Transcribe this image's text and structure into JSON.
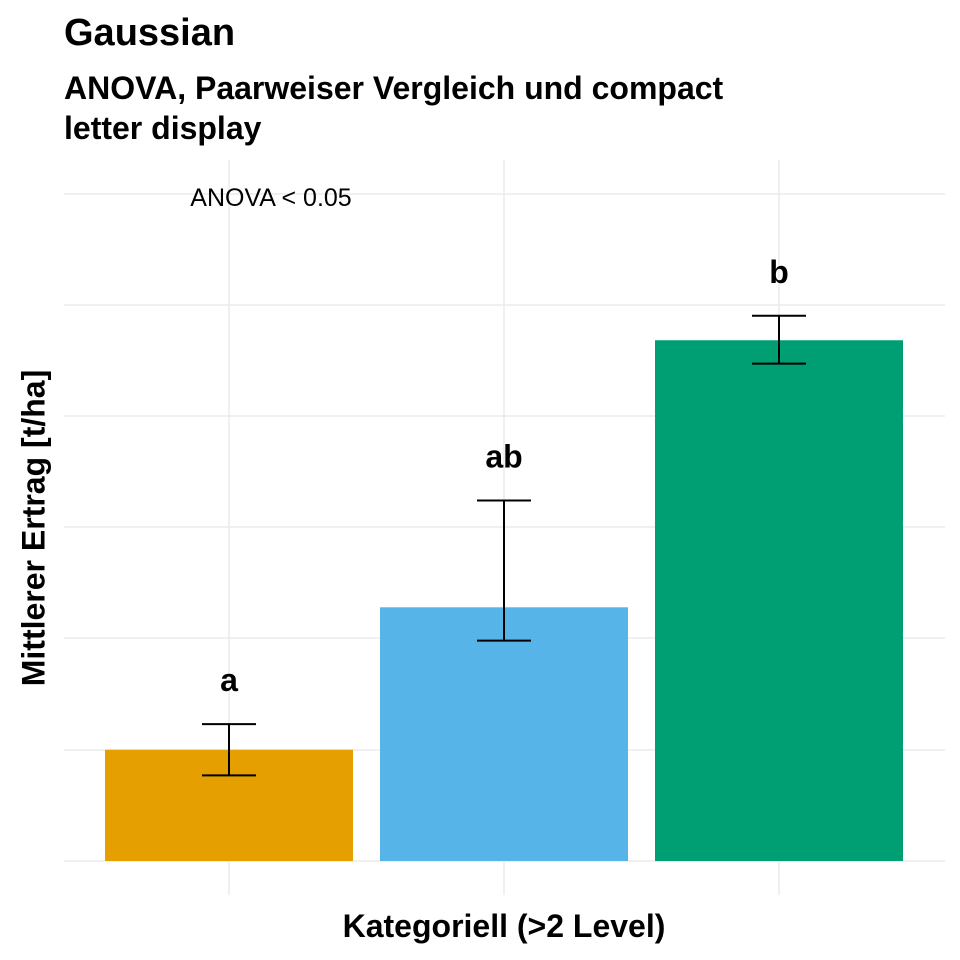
{
  "chart_data": {
    "type": "bar",
    "title": "Gaussian",
    "subtitle": "ANOVA, Paarweiser Vergleich und compact letter display",
    "xlabel": "Kategoriell (>2 Level)",
    "ylabel": "Mittlerer Ertrag [t/ha]",
    "annotation": "ANOVA < 0.05",
    "categories": [
      "",
      "",
      ""
    ],
    "values": [
      1.0,
      2.28,
      4.68
    ],
    "error_low": [
      0.77,
      1.98,
      4.47
    ],
    "error_high": [
      1.23,
      3.24,
      4.9
    ],
    "letters": [
      "a",
      "ab",
      "b"
    ],
    "colors": [
      "#E69F00",
      "#56B4E9",
      "#009E73"
    ],
    "ylim": [
      0,
      6.3
    ],
    "grid": true,
    "legend": "none",
    "tick_labels_shown": false
  }
}
